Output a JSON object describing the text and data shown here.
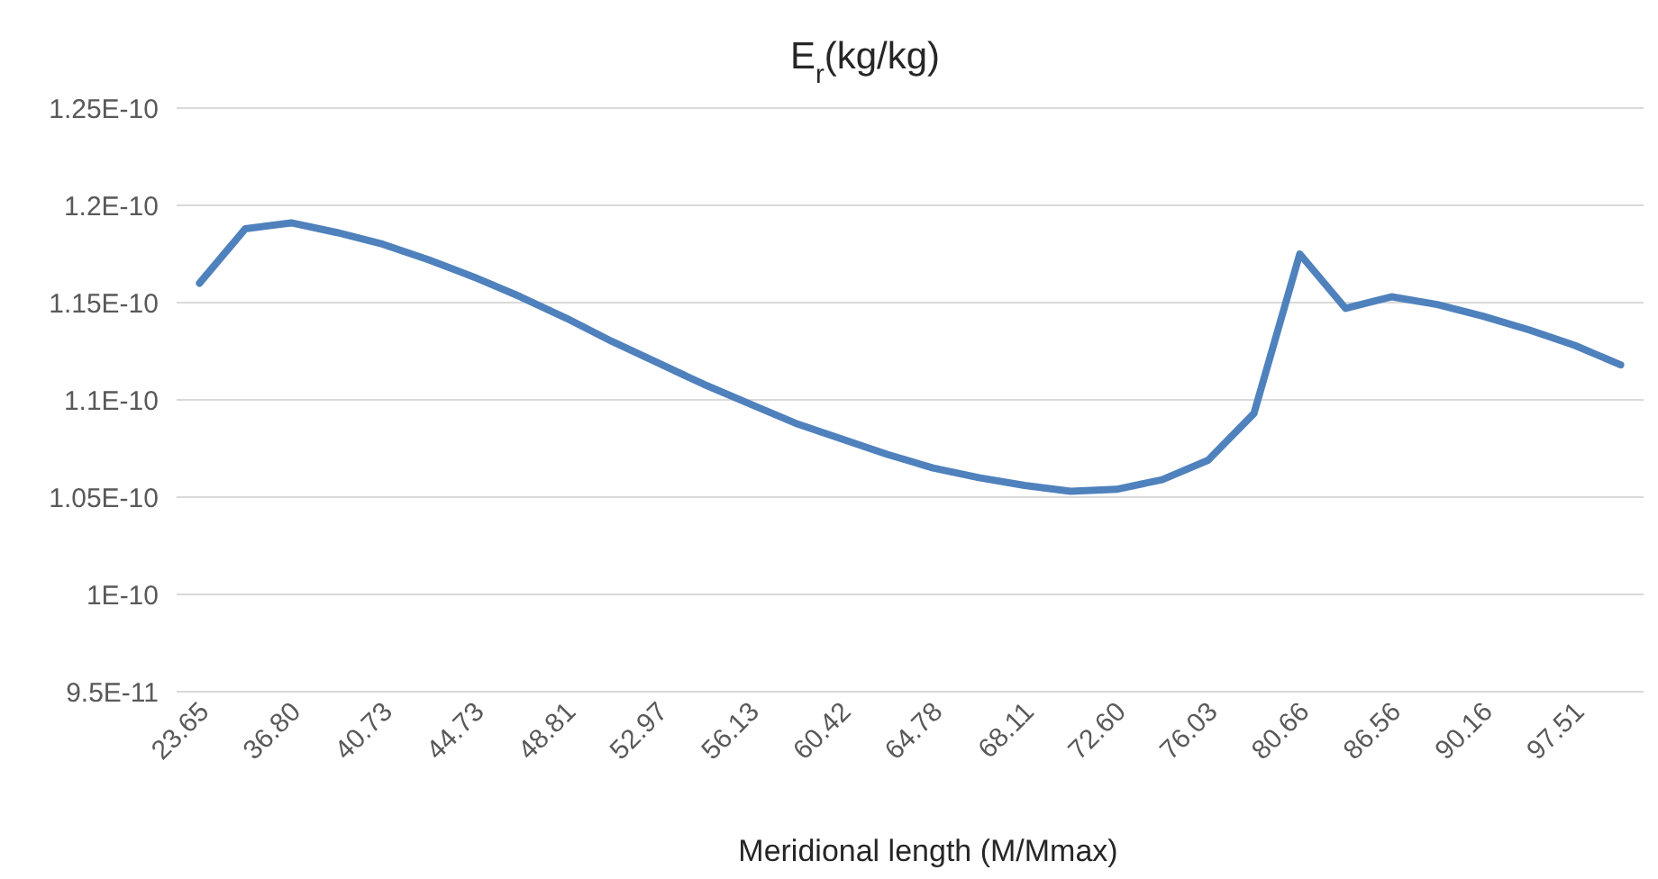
{
  "chart_data": {
    "type": "line",
    "title": "E$_{r}$(kg/kg)",
    "xlabel": "Meridional length (M/Mmax)",
    "categories": [
      "23.65",
      null,
      "36.80",
      null,
      "40.73",
      null,
      "44.73",
      null,
      "48.81",
      null,
      "52.97",
      null,
      "56.13",
      null,
      "60.42",
      null,
      "64.78",
      null,
      "68.11",
      null,
      "72.60",
      null,
      "76.03",
      null,
      "80.66",
      null,
      "86.56",
      null,
      "90.16",
      null,
      "97.51",
      null
    ],
    "series": [
      {
        "color": "#4f81bd",
        "values": [
          1.16e-10,
          1.188e-10,
          1.191e-10,
          1.186e-10,
          1.18e-10,
          1.172e-10,
          1.163e-10,
          1.153e-10,
          1.142e-10,
          1.13e-10,
          1.119e-10,
          1.108e-10,
          1.098e-10,
          1.088e-10,
          1.08e-10,
          1.072e-10,
          1.065e-10,
          1.06e-10,
          1.056e-10,
          1.053e-10,
          1.054e-10,
          1.059e-10,
          1.069e-10,
          1.093e-10,
          1.175e-10,
          1.147e-10,
          1.153e-10,
          1.149e-10,
          1.143e-10,
          1.136e-10,
          1.128e-10,
          1.118e-10
        ]
      }
    ],
    "ylim": [
      9.5e-11,
      1.25e-10
    ],
    "yticks": [
      {
        "value": 9.5e-11,
        "label": "9.5E-11"
      },
      {
        "value": 1e-10,
        "label": "1E-10"
      },
      {
        "value": 1.05e-10,
        "label": "1.05E-10"
      },
      {
        "value": 1.1e-10,
        "label": "1.1E-10"
      },
      {
        "value": 1.15e-10,
        "label": "1.15E-10"
      },
      {
        "value": 1.2e-10,
        "label": "1.2E-10"
      },
      {
        "value": 1.25e-10,
        "label": "1.25E-10"
      }
    ],
    "grid": "y",
    "marker": "none",
    "line_style": "solid"
  }
}
